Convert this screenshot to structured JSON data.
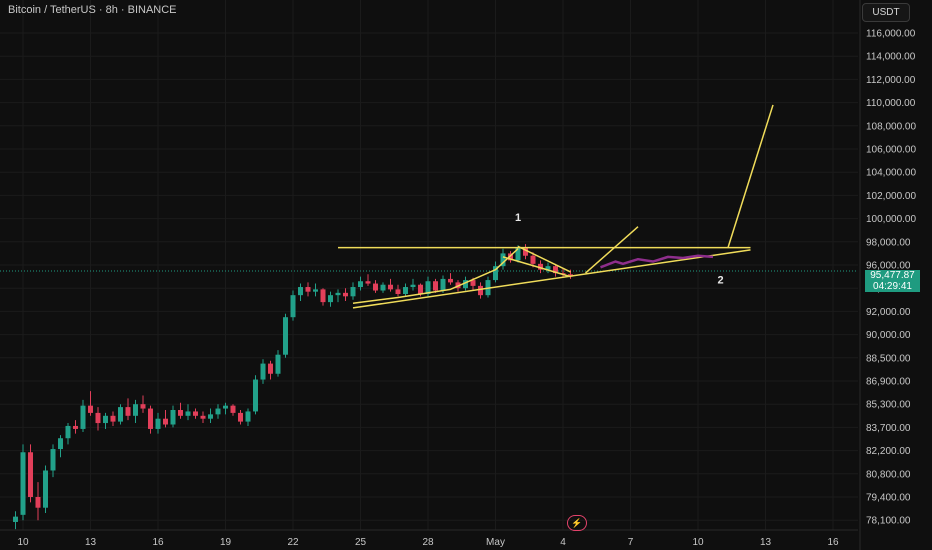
{
  "header": {
    "symbol": "Bitcoin / TetherUS · 8h · BINANCE"
  },
  "toolbar": {
    "currency_label": "USDT"
  },
  "price_badge": {
    "price": "95,477.87",
    "countdown": "04:29:41"
  },
  "colors": {
    "up": "#22a18a",
    "down": "#e23f5a",
    "drawing": "#f0dc5a",
    "projection": "#8e2e8c",
    "grid": "#1b1b1b",
    "axis_text": "#c8c8c8",
    "last_price_line": "#1f9b80"
  },
  "icons": {
    "replay": "lightning-icon"
  },
  "chart_data": {
    "type": "candlestick",
    "title": "Bitcoin / TetherUS · 8h · BINANCE",
    "xlabel": "",
    "ylabel": "",
    "x_ticks": [
      {
        "label": "10",
        "t": 0
      },
      {
        "label": "13",
        "t": 9
      },
      {
        "label": "16",
        "t": 18
      },
      {
        "label": "19",
        "t": 27
      },
      {
        "label": "22",
        "t": 36
      },
      {
        "label": "25",
        "t": 45
      },
      {
        "label": "28",
        "t": 54
      },
      {
        "label": "May",
        "t": 63
      },
      {
        "label": "4",
        "t": 72
      },
      {
        "label": "7",
        "t": 81
      },
      {
        "label": "10",
        "t": 90
      },
      {
        "label": "13",
        "t": 99
      },
      {
        "label": "16",
        "t": 108
      }
    ],
    "y_ticks": [
      {
        "label": "116,000.00",
        "v": 116000
      },
      {
        "label": "114,000.00",
        "v": 114000
      },
      {
        "label": "112,000.00",
        "v": 112000
      },
      {
        "label": "110,000.00",
        "v": 110000
      },
      {
        "label": "108,000.00",
        "v": 108000
      },
      {
        "label": "106,000.00",
        "v": 106000
      },
      {
        "label": "104,000.00",
        "v": 104000
      },
      {
        "label": "102,000.00",
        "v": 102000
      },
      {
        "label": "100,000.00",
        "v": 100000
      },
      {
        "label": "98,000.00",
        "v": 98000
      },
      {
        "label": "96,000.00",
        "v": 96000
      },
      {
        "label": "94,000.00",
        "v": 94000
      },
      {
        "label": "92,000.00",
        "v": 92000
      },
      {
        "label": "90,000.00",
        "v": 90000
      },
      {
        "label": "88,500.00",
        "v": 88500
      },
      {
        "label": "86,900.00",
        "v": 86900
      },
      {
        "label": "85,300.00",
        "v": 85300
      },
      {
        "label": "83,700.00",
        "v": 83700
      },
      {
        "label": "82,200.00",
        "v": 82200
      },
      {
        "label": "80,800.00",
        "v": 80800
      },
      {
        "label": "79,400.00",
        "v": 79400
      },
      {
        "label": "78,100.00",
        "v": 78100
      }
    ],
    "last_price": 95477.87,
    "candles": [
      [
        -1,
        78000,
        78600,
        77600,
        78300
      ],
      [
        0,
        78400,
        82600,
        78100,
        82100
      ],
      [
        1,
        82100,
        82600,
        79100,
        79400
      ],
      [
        2,
        79400,
        80300,
        78100,
        78800
      ],
      [
        3,
        78800,
        81300,
        78500,
        81000
      ],
      [
        4,
        81000,
        82600,
        80600,
        82300
      ],
      [
        5,
        82300,
        83200,
        81800,
        83000
      ],
      [
        6,
        83000,
        84000,
        82600,
        83800
      ],
      [
        7,
        83800,
        84200,
        83300,
        83600
      ],
      [
        8,
        83600,
        85600,
        83400,
        85200
      ],
      [
        9,
        85200,
        86200,
        84500,
        84700
      ],
      [
        10,
        84700,
        85100,
        83500,
        84000
      ],
      [
        11,
        84000,
        84700,
        83600,
        84500
      ],
      [
        12,
        84500,
        84800,
        83800,
        84100
      ],
      [
        13,
        84100,
        85300,
        83900,
        85100
      ],
      [
        14,
        85100,
        85700,
        84200,
        84500
      ],
      [
        15,
        84500,
        85600,
        84000,
        85300
      ],
      [
        16,
        85300,
        85900,
        84700,
        85000
      ],
      [
        17,
        85000,
        85200,
        83300,
        83600
      ],
      [
        18,
        83600,
        84700,
        83300,
        84300
      ],
      [
        19,
        84300,
        84900,
        83700,
        83900
      ],
      [
        20,
        83900,
        85200,
        83700,
        84900
      ],
      [
        21,
        84900,
        85400,
        84300,
        84500
      ],
      [
        22,
        84500,
        85300,
        84200,
        84800
      ],
      [
        23,
        84800,
        85000,
        84300,
        84500
      ],
      [
        24,
        84500,
        84800,
        84000,
        84300
      ],
      [
        25,
        84300,
        85000,
        84000,
        84600
      ],
      [
        26,
        84600,
        85300,
        84300,
        85000
      ],
      [
        27,
        85000,
        85400,
        84600,
        85200
      ],
      [
        28,
        85200,
        85300,
        84500,
        84700
      ],
      [
        29,
        84700,
        84900,
        83900,
        84100
      ],
      [
        30,
        84100,
        85000,
        83800,
        84800
      ],
      [
        31,
        84800,
        87300,
        84600,
        87000
      ],
      [
        32,
        87000,
        88400,
        86700,
        88100
      ],
      [
        33,
        88100,
        88300,
        87000,
        87400
      ],
      [
        34,
        87400,
        89000,
        87200,
        88700
      ],
      [
        35,
        88700,
        91800,
        88500,
        91500
      ],
      [
        36,
        91500,
        93800,
        91200,
        93400
      ],
      [
        37,
        93400,
        94400,
        92900,
        94100
      ],
      [
        38,
        94100,
        94500,
        93300,
        93700
      ],
      [
        39,
        93700,
        94400,
        93300,
        93900
      ],
      [
        40,
        93900,
        94000,
        92500,
        92800
      ],
      [
        41,
        92800,
        93700,
        92400,
        93400
      ],
      [
        42,
        93400,
        93900,
        92800,
        93600
      ],
      [
        43,
        93600,
        94000,
        92900,
        93300
      ],
      [
        44,
        93300,
        94500,
        93000,
        94100
      ],
      [
        45,
        94100,
        95000,
        93800,
        94600
      ],
      [
        46,
        94600,
        95200,
        94200,
        94400
      ],
      [
        47,
        94400,
        94700,
        93600,
        93800
      ],
      [
        48,
        93800,
        94500,
        93600,
        94300
      ],
      [
        49,
        94300,
        94800,
        93700,
        93900
      ],
      [
        50,
        93900,
        94300,
        93300,
        93500
      ],
      [
        51,
        93500,
        94400,
        93300,
        94100
      ],
      [
        52,
        94100,
        94800,
        93800,
        94300
      ],
      [
        53,
        94300,
        94400,
        93300,
        93500
      ],
      [
        54,
        93500,
        95000,
        93300,
        94600
      ],
      [
        55,
        94600,
        94800,
        93600,
        93800
      ],
      [
        56,
        93800,
        95100,
        93600,
        94800
      ],
      [
        57,
        94800,
        95300,
        94300,
        94500
      ],
      [
        58,
        94500,
        94700,
        93700,
        94000
      ],
      [
        59,
        94000,
        95000,
        93800,
        94700
      ],
      [
        60,
        94700,
        94900,
        93800,
        94200
      ],
      [
        61,
        94200,
        94500,
        93100,
        93400
      ],
      [
        62,
        93400,
        95000,
        93200,
        94700
      ],
      [
        63,
        94700,
        96300,
        94500,
        95900
      ],
      [
        64,
        95900,
        97400,
        95600,
        97000
      ],
      [
        65,
        97000,
        97200,
        96200,
        96400
      ],
      [
        66,
        96400,
        97700,
        96200,
        97500
      ],
      [
        67,
        97500,
        97800,
        96500,
        96800
      ],
      [
        68,
        96800,
        97100,
        95800,
        96100
      ],
      [
        69,
        96100,
        96400,
        95300,
        95600
      ],
      [
        70,
        95600,
        96200,
        95300,
        95900
      ],
      [
        71,
        95900,
        96100,
        95000,
        95300
      ],
      [
        72,
        95300,
        95700,
        94900,
        95200
      ],
      [
        73,
        95200,
        95600,
        94800,
        95000
      ]
    ],
    "annotations": [
      {
        "text": "1",
        "t": 66,
        "v": 99800
      },
      {
        "text": "2",
        "t": 93,
        "v": 94400
      }
    ],
    "drawings": {
      "resistance": [
        [
          42,
          97500
        ],
        [
          97,
          97500
        ]
      ],
      "support": [
        [
          44,
          92300
        ],
        [
          97,
          97300
        ]
      ],
      "breakout_target": [
        [
          94,
          97500
        ],
        [
          100,
          109800
        ]
      ],
      "pennant_lines": [
        [
          [
            66,
            97600
          ],
          [
            73,
            95400
          ]
        ],
        [
          [
            64,
            96700
          ],
          [
            73,
            95000
          ]
        ]
      ],
      "curve": [
        [
          44,
          92700
        ],
        [
          50,
          93200
        ],
        [
          57,
          93900
        ],
        [
          63,
          95600
        ],
        [
          66,
          97400
        ]
      ],
      "short_breakout": [
        [
          75,
          95300
        ],
        [
          82,
          99300
        ]
      ],
      "projection": [
        [
          77,
          95800
        ],
        [
          79,
          96300
        ],
        [
          80,
          96100
        ],
        [
          82,
          96500
        ],
        [
          84,
          96300
        ],
        [
          86,
          96700
        ],
        [
          88,
          96600
        ],
        [
          90,
          96800
        ],
        [
          92,
          96700
        ]
      ]
    }
  }
}
